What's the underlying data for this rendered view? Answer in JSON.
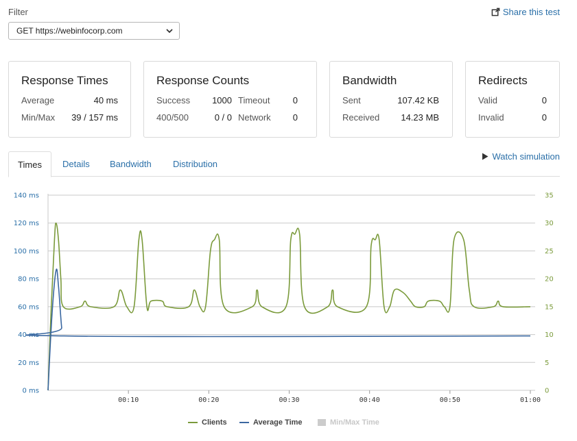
{
  "filter": {
    "label": "Filter",
    "selected": "GET https://webinfocorp.com"
  },
  "share_label": "Share this test",
  "cards": {
    "response_times": {
      "title": "Response Times",
      "average_label": "Average",
      "average_value": "40 ms",
      "minmax_label": "Min/Max",
      "minmax_value": "39 / 157 ms"
    },
    "response_counts": {
      "title": "Response Counts",
      "success_label": "Success",
      "success_value": "1000",
      "timeout_label": "Timeout",
      "timeout_value": "0",
      "errors_label": "400/500",
      "errors_value": "0 / 0",
      "network_label": "Network",
      "network_value": "0"
    },
    "bandwidth": {
      "title": "Bandwidth",
      "sent_label": "Sent",
      "sent_value": "107.42 KB",
      "received_label": "Received",
      "received_value": "14.23 MB"
    },
    "redirects": {
      "title": "Redirects",
      "valid_label": "Valid",
      "valid_value": "0",
      "invalid_label": "Invalid",
      "invalid_value": "0"
    }
  },
  "tabs": [
    "Times",
    "Details",
    "Bandwidth",
    "Distribution"
  ],
  "watch_label": "Watch simulation",
  "colors": {
    "clients": "#7a9a3a",
    "average_time": "#3a67a0",
    "minmax": "#cccccc",
    "link": "#2a6fa8"
  },
  "chart_data": {
    "type": "line",
    "title": "",
    "xlabel": "",
    "ylabel": "",
    "x_ticks": [
      "00:10",
      "00:20",
      "00:30",
      "00:40",
      "00:50",
      "01:00"
    ],
    "y_left_ticks": [
      "0 ms",
      "20 ms",
      "40 ms",
      "60 ms",
      "80 ms",
      "100 ms",
      "120 ms",
      "140 ms"
    ],
    "y_right_ticks": [
      "0",
      "5",
      "10",
      "15",
      "20",
      "25",
      "30",
      "35"
    ],
    "xlim": [
      0,
      60
    ],
    "ylim_left": [
      0,
      140
    ],
    "ylim_right": [
      0,
      35
    ],
    "grid": true,
    "legend_position": "bottom-center",
    "legend": [
      "Clients",
      "Average Time",
      "Min/Max Time"
    ],
    "series": [
      {
        "name": "Clients",
        "axis": "right",
        "points": [
          [
            0,
            0
          ],
          [
            0.4,
            15
          ],
          [
            0.8,
            27
          ],
          [
            1.0,
            30
          ],
          [
            1.3,
            27
          ],
          [
            1.6,
            20
          ],
          [
            1.9,
            15
          ],
          [
            4,
            15
          ],
          [
            4.6,
            16
          ],
          [
            5.3,
            15
          ],
          [
            8.2,
            15
          ],
          [
            9.0,
            18
          ],
          [
            9.8,
            15
          ],
          [
            10.7,
            15
          ],
          [
            11.3,
            27
          ],
          [
            11.7,
            27
          ],
          [
            12.3,
            15
          ],
          [
            12.8,
            16
          ],
          [
            14.2,
            16
          ],
          [
            14.8,
            15
          ],
          [
            17.5,
            15
          ],
          [
            18.2,
            18
          ],
          [
            18.9,
            15
          ],
          [
            19.6,
            15
          ],
          [
            20.2,
            25
          ],
          [
            20.7,
            27
          ],
          [
            21.3,
            27
          ],
          [
            21.9,
            15
          ],
          [
            25.4,
            15
          ],
          [
            26.0,
            18
          ],
          [
            26.6,
            15
          ],
          [
            29.6,
            15
          ],
          [
            30.2,
            27
          ],
          [
            30.7,
            28
          ],
          [
            31.3,
            28
          ],
          [
            31.9,
            15
          ],
          [
            34.8,
            15
          ],
          [
            35.4,
            18
          ],
          [
            36.0,
            15
          ],
          [
            39.6,
            15
          ],
          [
            40.2,
            26
          ],
          [
            40.7,
            27
          ],
          [
            41.2,
            27
          ],
          [
            41.8,
            15
          ],
          [
            42.5,
            15
          ],
          [
            43.1,
            18
          ],
          [
            44.2,
            17.5
          ],
          [
            45.1,
            16
          ],
          [
            45.7,
            15
          ],
          [
            46.8,
            15
          ],
          [
            47.3,
            16
          ],
          [
            48.7,
            16
          ],
          [
            49.3,
            15
          ],
          [
            50.0,
            15
          ],
          [
            50.5,
            27
          ],
          [
            51.7,
            27
          ],
          [
            52.4,
            18
          ],
          [
            53.0,
            15
          ],
          [
            55.4,
            15
          ],
          [
            56.0,
            16
          ],
          [
            56.6,
            15
          ],
          [
            60,
            15
          ]
        ]
      },
      {
        "name": "Average Time",
        "axis": "left",
        "points": [
          [
            0,
            0
          ],
          [
            0.5,
            55
          ],
          [
            1.0,
            86
          ],
          [
            1.3,
            75
          ],
          [
            1.7,
            45
          ],
          [
            2.0,
            39
          ],
          [
            60,
            39
          ]
        ]
      }
    ]
  }
}
